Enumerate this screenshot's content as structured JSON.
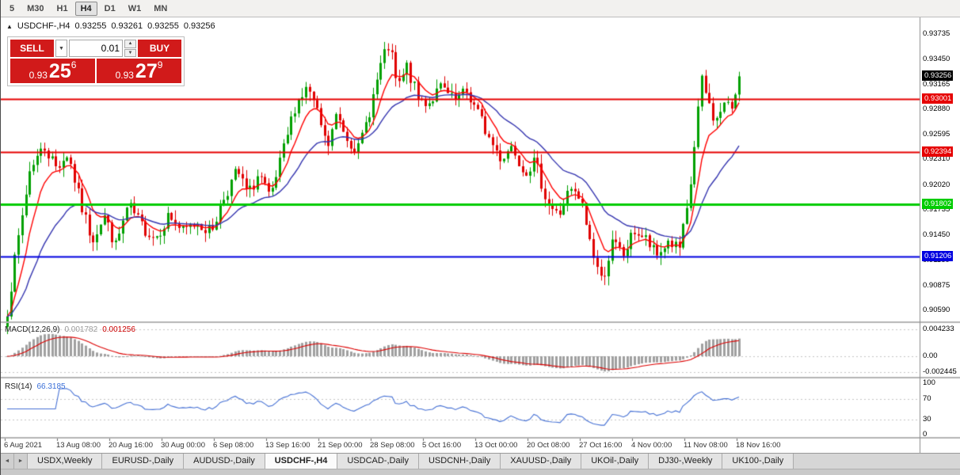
{
  "toolbar": {
    "timeframes": [
      "5",
      "M30",
      "H1",
      "H4",
      "D1",
      "W1",
      "MN"
    ],
    "active": "H4"
  },
  "chart": {
    "ohlc_header": {
      "toggle_icon": "▲",
      "symbol": "USDCHF-,H4",
      "open": "0.93255",
      "high": "0.93261",
      "low": "0.93255",
      "close": "0.93256"
    },
    "trade_panel": {
      "sell_label": "SELL",
      "buy_label": "BUY",
      "lot_value": "0.01",
      "dropdown_icon": "▼",
      "step_up_icon": "▲",
      "step_down_icon": "▼",
      "sell_price": {
        "prefix": "0.93",
        "big": "25",
        "sup": "6"
      },
      "buy_price": {
        "prefix": "0.93",
        "big": "27",
        "sup": "9"
      }
    },
    "price_axis": {
      "tick_labels": [
        "0.93735",
        "0.93450",
        "0.93165",
        "0.92880",
        "0.92595",
        "0.92310",
        "0.92020",
        "0.91735",
        "0.91450",
        "0.91160",
        "0.90875",
        "0.90590"
      ],
      "current_price": {
        "label": "0.93256",
        "value": 0.93256,
        "bg": "#000000"
      },
      "lines": [
        {
          "value": 0.93001,
          "label": "0.93001",
          "color": "#e60000",
          "thickness": 2
        },
        {
          "value": 0.92394,
          "label": "0.92394",
          "color": "#e60000",
          "thickness": 2
        },
        {
          "value": 0.91802,
          "label": "0.91802",
          "color": "#00cc00",
          "thickness": 3
        },
        {
          "value": 0.91206,
          "label": "0.91206",
          "color": "#0000e0",
          "thickness": 2
        }
      ]
    },
    "date_axis": {
      "labels": [
        "6 Aug 2021",
        "13 Aug 08:00",
        "20 Aug 16:00",
        "30 Aug 00:00",
        "6 Sep 08:00",
        "13 Sep 16:00",
        "21 Sep 00:00",
        "28 Sep 08:00",
        "5 Oct 16:00",
        "13 Oct 00:00",
        "20 Oct 08:00",
        "27 Oct 16:00",
        "4 Nov 00:00",
        "11 Nov 08:00",
        "18 Nov 16:00"
      ]
    }
  },
  "indicators": {
    "macd": {
      "title": "MACD(12,26,9)",
      "value_main": "0.001782",
      "value_signal": "0.001256",
      "axis_labels": [
        {
          "value": 0.004233,
          "label": "0.004233"
        },
        {
          "value": 0,
          "label": "0.00"
        },
        {
          "value": -0.002445,
          "label": "-0.002445"
        }
      ]
    },
    "rsi": {
      "title": "RSI(14)",
      "value": "66.3185",
      "levels": [
        70,
        30
      ],
      "axis_labels": [
        {
          "value": 100,
          "label": "100"
        },
        {
          "value": 70,
          "label": "70"
        },
        {
          "value": 30,
          "label": "30"
        },
        {
          "value": 0,
          "label": "0"
        }
      ]
    }
  },
  "tabs": {
    "scroll_left_icon": "◄",
    "scroll_right_icon": "►",
    "items": [
      "USDX,Weekly",
      "EURUSD-,Daily",
      "AUDUSD-,Daily",
      "USDCHF-,H4",
      "USDCAD-,Daily",
      "USDCNH-,Daily",
      "XAUUSD-,Daily",
      "UKOil-,Daily",
      "DJ30-,Weekly",
      "UK100-,Daily"
    ],
    "active": "USDCHF-,H4"
  },
  "colors": {
    "candle_up": "#00a000",
    "candle_down": "#e00000",
    "ma_fast": "#ff0000",
    "ma_slow": "#3535b0",
    "macd_hist": "#a0a0a0",
    "macd_signal": "#dd0000",
    "rsi_line": "#4671d5",
    "grid_dotted": "#c6c6c6"
  },
  "chart_data": {
    "type": "candlestick",
    "symbol": "USDCHF-",
    "timeframe": "H4",
    "n_candles": 197,
    "y_ticks": [
      0.93735,
      0.9345,
      0.93165,
      0.9288,
      0.92595,
      0.9231,
      0.9202,
      0.91735,
      0.9145,
      0.9116,
      0.90875,
      0.9059
    ],
    "horizontal_lines": [
      0.93001,
      0.92394,
      0.91802,
      0.91206
    ],
    "last_candle": {
      "open": 0.93255,
      "high": 0.93261,
      "low": 0.93255,
      "close": 0.93256
    },
    "close_path_anchors": [
      [
        0,
        0.906
      ],
      [
        0.013,
        0.913
      ],
      [
        0.032,
        0.9225
      ],
      [
        0.051,
        0.9245
      ],
      [
        0.067,
        0.9222
      ],
      [
        0.083,
        0.9238
      ],
      [
        0.1,
        0.918
      ],
      [
        0.116,
        0.914
      ],
      [
        0.132,
        0.9168
      ],
      [
        0.148,
        0.9132
      ],
      [
        0.165,
        0.9178
      ],
      [
        0.184,
        0.9155
      ],
      [
        0.202,
        0.9142
      ],
      [
        0.221,
        0.9168
      ],
      [
        0.24,
        0.9148
      ],
      [
        0.26,
        0.916
      ],
      [
        0.278,
        0.9148
      ],
      [
        0.297,
        0.919
      ],
      [
        0.314,
        0.9218
      ],
      [
        0.329,
        0.919
      ],
      [
        0.344,
        0.9215
      ],
      [
        0.359,
        0.9183
      ],
      [
        0.377,
        0.924
      ],
      [
        0.394,
        0.9295
      ],
      [
        0.411,
        0.9313
      ],
      [
        0.429,
        0.9268
      ],
      [
        0.437,
        0.9242
      ],
      [
        0.45,
        0.9282
      ],
      [
        0.465,
        0.9255
      ],
      [
        0.48,
        0.9242
      ],
      [
        0.496,
        0.929
      ],
      [
        0.511,
        0.934
      ],
      [
        0.522,
        0.9362
      ],
      [
        0.533,
        0.931
      ],
      [
        0.546,
        0.9336
      ],
      [
        0.561,
        0.93
      ],
      [
        0.576,
        0.9296
      ],
      [
        0.593,
        0.9313
      ],
      [
        0.61,
        0.9296
      ],
      [
        0.628,
        0.9308
      ],
      [
        0.645,
        0.928
      ],
      [
        0.66,
        0.9252
      ],
      [
        0.675,
        0.9232
      ],
      [
        0.69,
        0.9248
      ],
      [
        0.706,
        0.9218
      ],
      [
        0.721,
        0.9228
      ],
      [
        0.738,
        0.9182
      ],
      [
        0.753,
        0.9166
      ],
      [
        0.768,
        0.9196
      ],
      [
        0.784,
        0.9183
      ],
      [
        0.799,
        0.9128
      ],
      [
        0.812,
        0.9092
      ],
      [
        0.827,
        0.9136
      ],
      [
        0.842,
        0.9122
      ],
      [
        0.857,
        0.915
      ],
      [
        0.872,
        0.914
      ],
      [
        0.887,
        0.912
      ],
      [
        0.903,
        0.9138
      ],
      [
        0.918,
        0.9128
      ],
      [
        0.931,
        0.918
      ],
      [
        0.939,
        0.9248
      ],
      [
        0.948,
        0.9322
      ],
      [
        0.959,
        0.9293
      ],
      [
        0.968,
        0.9272
      ],
      [
        0.978,
        0.9295
      ],
      [
        0.989,
        0.9288
      ],
      [
        1,
        0.93256
      ]
    ],
    "subcharts": [
      {
        "name": "MACD",
        "params": [
          12,
          26,
          9
        ],
        "current": [
          0.001782,
          0.001256
        ]
      },
      {
        "name": "RSI",
        "params": [
          14
        ],
        "current": 66.3185
      }
    ]
  }
}
